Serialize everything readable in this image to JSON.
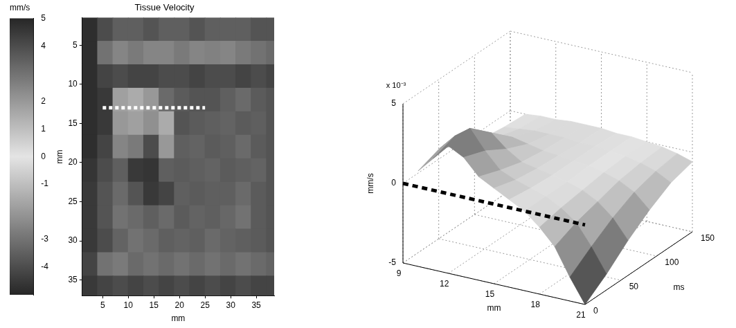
{
  "chart_data": [
    {
      "type": "heatmap",
      "title": "Tissue Velocity",
      "x_label": "mm",
      "y_label": "mm",
      "xlim": [
        1,
        38.5
      ],
      "xticks": [
        5,
        10,
        15,
        20,
        25,
        30,
        35
      ],
      "ylim": [
        37,
        1.5
      ],
      "yticks": [
        5,
        10,
        15,
        20,
        25,
        30,
        35
      ],
      "color": "#555555",
      "cells": {
        "x": [
          2.5,
          5.5,
          8.5,
          11.5,
          14.5,
          17.5,
          20.5,
          23.5,
          26.5,
          29.5,
          32.5,
          35.5,
          38.5
        ],
        "y": [
          3,
          6,
          9,
          12,
          15,
          18,
          21,
          24,
          27,
          30,
          33,
          36
        ],
        "values": [
          [
            4.8,
            4.0,
            3.5,
            3.5,
            3.8,
            3.5,
            3.5,
            3.8,
            3.5,
            3.5,
            3.5,
            3.8,
            3.8
          ],
          [
            4.8,
            3.0,
            2.5,
            2.8,
            2.5,
            2.5,
            2.8,
            2.5,
            2.6,
            2.5,
            2.8,
            3.0,
            3.2
          ],
          [
            4.8,
            4.2,
            4.0,
            4.2,
            4.2,
            4.0,
            4.0,
            4.2,
            4.0,
            4.0,
            4.2,
            4.0,
            4.2
          ],
          [
            4.8,
            4.5,
            1.8,
            1.5,
            2.0,
            3.2,
            3.6,
            3.8,
            3.8,
            3.5,
            3.2,
            3.6,
            3.8
          ],
          [
            4.8,
            4.5,
            2.0,
            1.8,
            2.2,
            1.5,
            3.8,
            3.6,
            3.5,
            3.4,
            3.6,
            3.5,
            3.8
          ],
          [
            4.8,
            4.2,
            2.5,
            2.8,
            4.0,
            2.0,
            3.5,
            3.4,
            3.6,
            3.5,
            3.2,
            3.6,
            3.8
          ],
          [
            4.6,
            4.0,
            3.5,
            4.5,
            4.6,
            3.5,
            3.6,
            3.5,
            3.4,
            3.6,
            3.5,
            3.4,
            3.8
          ],
          [
            4.5,
            3.8,
            3.2,
            3.8,
            4.5,
            4.2,
            3.5,
            3.6,
            3.5,
            3.5,
            3.2,
            3.6,
            3.8
          ],
          [
            4.5,
            3.8,
            3.0,
            3.2,
            3.5,
            3.2,
            3.6,
            3.4,
            3.5,
            3.3,
            3.0,
            3.6,
            3.8
          ],
          [
            4.5,
            4.0,
            3.4,
            3.0,
            3.2,
            3.5,
            3.4,
            3.5,
            3.2,
            3.4,
            3.5,
            3.6,
            3.8
          ],
          [
            4.2,
            3.0,
            2.8,
            3.2,
            3.0,
            3.2,
            3.0,
            3.2,
            3.0,
            3.2,
            3.0,
            3.2,
            3.4
          ],
          [
            4.5,
            4.2,
            4.0,
            4.2,
            4.0,
            4.2,
            4.0,
            4.2,
            4.0,
            4.2,
            4.0,
            4.2,
            4.2
          ]
        ]
      },
      "colorbar": {
        "label": "mm/s",
        "range": [
          -5,
          5
        ],
        "ticks": [
          5,
          4,
          2,
          1,
          0,
          -1,
          -3,
          -4
        ]
      },
      "lines": [
        {
          "x": [
            5,
            25
          ],
          "values": [
            13,
            13
          ],
          "color": "#ffffff",
          "line_style": "dotted"
        }
      ]
    },
    {
      "type": "surface",
      "x_label": "mm",
      "y_label": "ms",
      "z_label": "mm/s",
      "z_multiplier": "x 10⁻³",
      "xlim": [
        9,
        21
      ],
      "xticks": [
        9,
        12,
        15,
        18,
        21
      ],
      "ylim": [
        0,
        150
      ],
      "yticks": [
        0,
        50,
        100,
        150
      ],
      "zlim": [
        -5,
        5
      ],
      "zticks": [
        -5,
        0,
        5
      ],
      "grid": true,
      "surface": {
        "x": [
          10,
          11,
          12,
          13,
          14,
          15,
          16,
          17,
          18,
          19,
          20,
          21
        ],
        "y": [
          0,
          30,
          60,
          90,
          120,
          150
        ],
        "values": [
          [
            1.0,
            2.0,
            3.0,
            2.5,
            1.5,
            1.0,
            0.5,
            0.0,
            -0.8,
            -1.8,
            -3.5,
            -5.0
          ],
          [
            1.5,
            2.5,
            3.2,
            2.0,
            1.0,
            0.6,
            0.3,
            0.0,
            -0.5,
            -1.2,
            -2.5,
            -4.0
          ],
          [
            0.8,
            1.5,
            2.0,
            1.2,
            0.6,
            0.4,
            0.2,
            0.0,
            -0.3,
            -0.8,
            -1.6,
            -2.8
          ],
          [
            0.3,
            0.6,
            0.8,
            0.6,
            0.4,
            0.3,
            0.2,
            0.1,
            -0.1,
            -0.4,
            -0.9,
            -1.8
          ],
          [
            0.1,
            0.2,
            0.3,
            0.3,
            0.3,
            0.2,
            0.2,
            0.1,
            0.0,
            -0.2,
            -0.5,
            -1.0
          ],
          [
            0.0,
            0.1,
            0.1,
            0.2,
            0.2,
            0.2,
            0.1,
            0.1,
            0.0,
            -0.1,
            -0.3,
            -0.6
          ]
        ]
      },
      "lines": [
        {
          "x": [
            9,
            21
          ],
          "y": [
            0,
            0
          ],
          "values": [
            0,
            0
          ],
          "color": "#000000",
          "line_style": "dashed"
        }
      ]
    }
  ]
}
